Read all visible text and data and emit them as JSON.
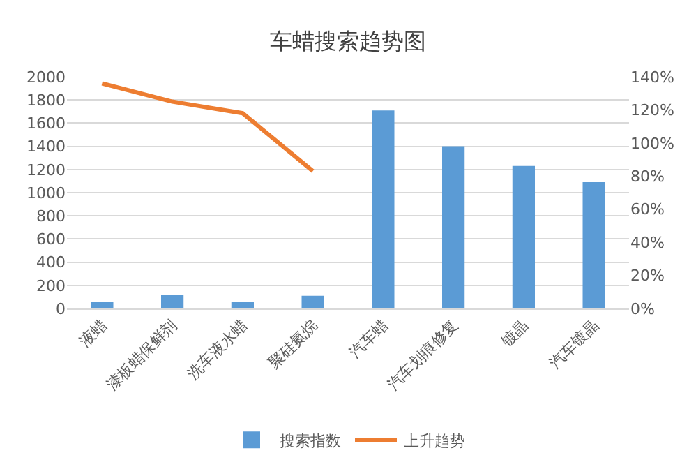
{
  "chart_data": {
    "type": "bar",
    "title": "车蜡搜索趋势图",
    "categories": [
      "液蜡",
      "漆板蜡保鲜剂",
      "洗车液水蜡",
      "聚硅氮烷",
      "汽车蜡",
      "汽车划痕修复",
      "镀晶",
      "汽车镀晶"
    ],
    "series": [
      {
        "name": "搜索指数",
        "color": "#5b9bd5",
        "values": [
          60,
          120,
          60,
          110,
          1710,
          1400,
          1230,
          1090
        ]
      },
      {
        "name": "上升趋势",
        "type": "line",
        "axis": "y2",
        "color": "#ed7d31",
        "values": [
          136,
          125,
          118,
          83,
          null,
          null,
          null,
          null
        ]
      }
    ],
    "ylim": [
      0,
      2000
    ],
    "yticks": [
      0,
      200,
      400,
      600,
      800,
      1000,
      1200,
      1400,
      1600,
      1800,
      2000
    ],
    "y2lim": [
      0,
      140
    ],
    "y2ticks": [
      {
        "value": 0,
        "label": "0%"
      },
      {
        "value": 20,
        "label": "20%"
      },
      {
        "value": 40,
        "label": "40%"
      },
      {
        "value": 60,
        "label": "60%"
      },
      {
        "value": 80,
        "label": "80%"
      },
      {
        "value": 100,
        "label": "100%"
      },
      {
        "value": 120,
        "label": "120%"
      },
      {
        "value": 140,
        "label": "140%"
      }
    ],
    "grid": "y",
    "legend": "bottom",
    "marker": "none"
  }
}
